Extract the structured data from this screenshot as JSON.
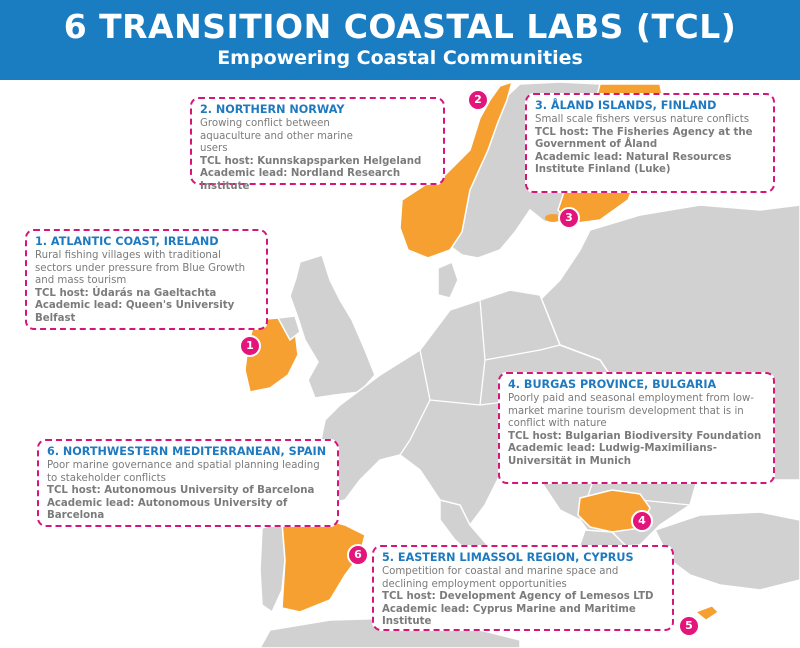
{
  "header": {
    "title": "6 TRANSITION COASTAL LABS (TCL)",
    "subtitle": "Empowering Coastal Communities"
  },
  "colors": {
    "banner": "#1a7cc1",
    "highlight_country": "#f7a032",
    "other_land": "#d1d1d1",
    "border_dash": "#d6157a",
    "marker": "#e3147a",
    "box_title": "#1f79bf"
  },
  "labs": [
    {
      "number": "1",
      "title": "1. ATLANTIC COAST, IRELAND",
      "description": "Rural fishing villages with traditional sectors under pressure from Blue Growth and mass tourism",
      "host": "TCL host: Údarás na Gaeltachta",
      "lead": "Academic lead: Queen's University Belfast"
    },
    {
      "number": "2",
      "title": "2. NORTHERN NORWAY",
      "description": "Growing conflict between aquaculture and other marine users",
      "host": "TCL host: Kunnskapsparken Helgeland",
      "lead": "Academic lead: Nordland Research Institute"
    },
    {
      "number": "3",
      "title": "3. ÅLAND ISLANDS, FINLAND",
      "description": "Small scale fishers versus nature conflicts",
      "host": "TCL host: The Fisheries Agency at the Government of Åland",
      "lead": "Academic lead: Natural Resources Institute Finland (Luke)"
    },
    {
      "number": "4",
      "title": "4. BURGAS PROVINCE, BULGARIA",
      "description": "Poorly paid and seasonal employment from low-market marine tourism development that is in conflict with nature",
      "host": "TCL host: Bulgarian Biodiversity Foundation",
      "lead": "Academic lead: Ludwig-Maximilians-Universität in Munich"
    },
    {
      "number": "5",
      "title": "5. EASTERN LIMASSOL REGION, CYPRUS",
      "description": "Competition for coastal and marine space and declining employment opportunities",
      "host": "TCL host: Development Agency of Lemesos LTD",
      "lead": "Academic lead: Cyprus Marine and Maritime Institute"
    },
    {
      "number": "6",
      "title": "6. NORTHWESTERN MEDITERRANEAN, SPAIN",
      "description": "Poor marine governance and spatial planning leading to stakeholder conflicts",
      "host": "TCL host: Autonomous University of Barcelona",
      "lead": "Academic lead: Autonomous University of Barcelona"
    }
  ]
}
